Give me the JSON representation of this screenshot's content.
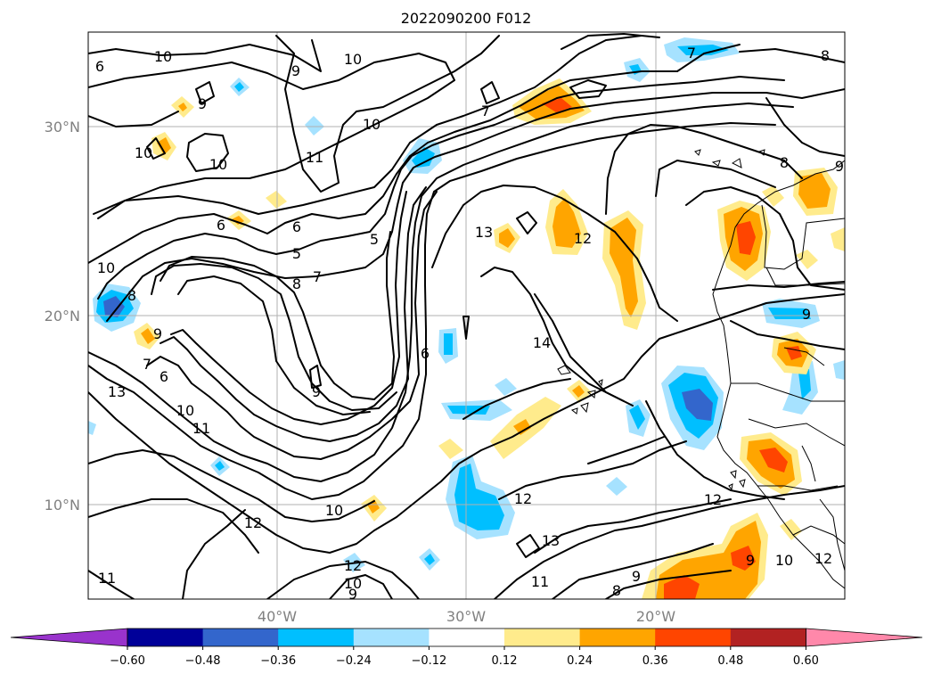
{
  "title": "2022090200 F012",
  "axes": {
    "lat_labels": [
      "30°N",
      "20°N",
      "10°N"
    ],
    "lon_labels": [
      "40°W",
      "30°W",
      "20°W"
    ],
    "lat_range": [
      5,
      35
    ],
    "lon_range": [
      -50,
      -10
    ]
  },
  "colorbar": {
    "colors": [
      "#9933cc",
      "#000099",
      "#3366cc",
      "#00bfff",
      "#a6e2ff",
      "#ffffff",
      "#ffeb8c",
      "#ffa500",
      "#ff4500",
      "#b22222",
      "#ff88aa"
    ],
    "tick_labels": [
      "−0.60",
      "−0.48",
      "−0.36",
      "−0.24",
      "−0.12",
      "0.12",
      "0.24",
      "0.36",
      "0.48",
      "0.60"
    ],
    "extend": "both"
  },
  "contour_labels": [
    {
      "text": "10"
    },
    {
      "text": "9"
    },
    {
      "text": "10"
    },
    {
      "text": "9"
    },
    {
      "text": "10"
    },
    {
      "text": "10"
    },
    {
      "text": "11"
    },
    {
      "text": "10"
    },
    {
      "text": "7"
    },
    {
      "text": "7"
    },
    {
      "text": "8"
    },
    {
      "text": "6"
    },
    {
      "text": "6"
    },
    {
      "text": "6"
    },
    {
      "text": "5"
    },
    {
      "text": "5"
    },
    {
      "text": "8"
    },
    {
      "text": "7"
    },
    {
      "text": "10"
    },
    {
      "text": "8"
    },
    {
      "text": "9"
    },
    {
      "text": "7"
    },
    {
      "text": "6"
    },
    {
      "text": "13"
    },
    {
      "text": "10"
    },
    {
      "text": "11"
    },
    {
      "text": "9"
    },
    {
      "text": "6"
    },
    {
      "text": "13"
    },
    {
      "text": "12"
    },
    {
      "text": "14"
    },
    {
      "text": "12"
    },
    {
      "text": "13"
    },
    {
      "text": "12"
    },
    {
      "text": "10"
    },
    {
      "text": "12"
    },
    {
      "text": "12"
    },
    {
      "text": "10"
    },
    {
      "text": "9"
    },
    {
      "text": "11"
    },
    {
      "text": "8"
    },
    {
      "text": "9"
    },
    {
      "text": "9"
    },
    {
      "text": "10"
    },
    {
      "text": "12"
    },
    {
      "text": "11"
    },
    {
      "text": "9"
    },
    {
      "text": "9"
    },
    {
      "text": "8"
    }
  ]
}
